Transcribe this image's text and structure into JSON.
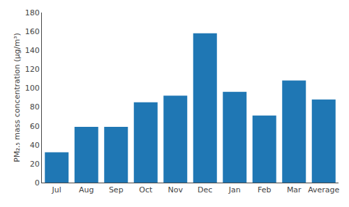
{
  "chart_data": {
    "type": "bar",
    "categories": [
      "Jul",
      "Aug",
      "Sep",
      "Oct",
      "Nov",
      "Dec",
      "Jan",
      "Feb",
      "Mar",
      "Average"
    ],
    "values": [
      32,
      59,
      59,
      85,
      92,
      158,
      96,
      71,
      108,
      88
    ],
    "ylabel": "PM₂.₅ mass concentration (μg/m³)",
    "ylim": [
      0,
      180
    ],
    "yticks": [
      0,
      20,
      40,
      60,
      80,
      100,
      120,
      140,
      160,
      180
    ],
    "grid": false
  }
}
